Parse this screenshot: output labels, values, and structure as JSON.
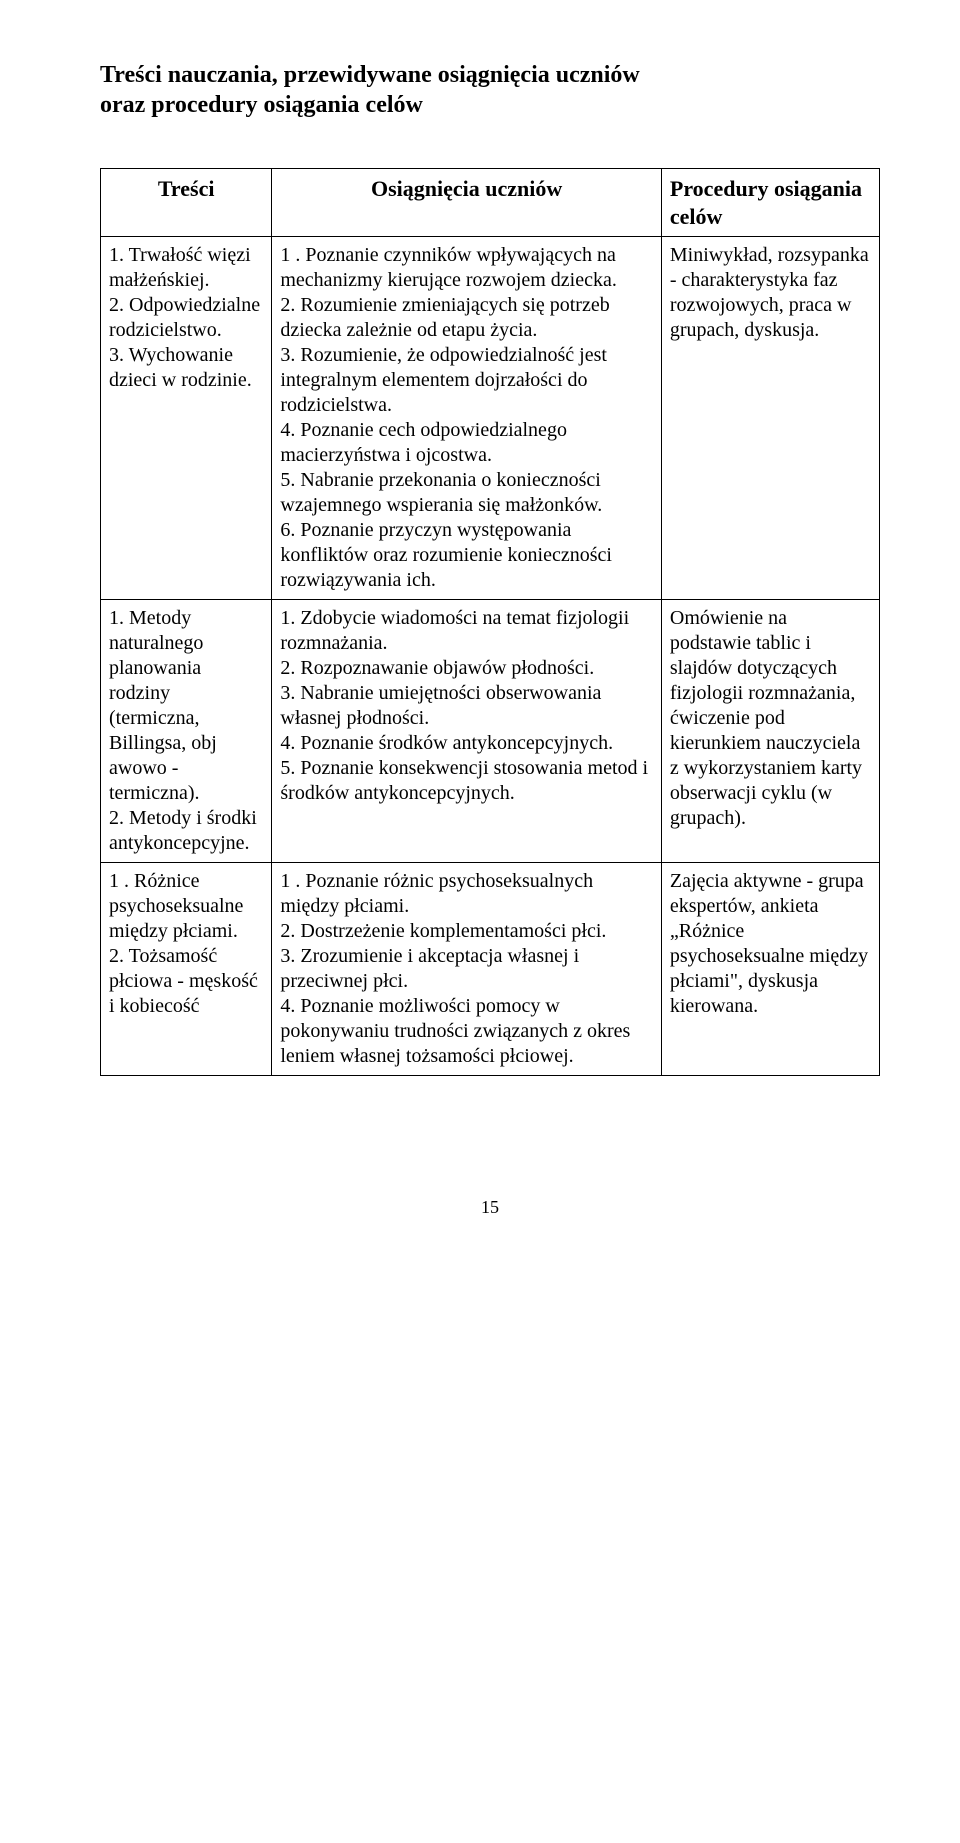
{
  "title_line1": "Treści nauczania, przewidywane osiągnięcia uczniów",
  "title_line2": "oraz procedury osiągania celów",
  "headers": {
    "col1": "Treści",
    "col2": "Osiągnięcia uczniów",
    "col3": "Procedury osiągania celów"
  },
  "rows": [
    {
      "c1": "1. Trwałość więzi małżeńskiej.\n2. Odpowiedzialne rodzicielstwo.\n3. Wychowanie dzieci w rodzinie.",
      "c2": "1 . Poznanie czynników wpływających na mechanizmy kierujące rozwojem dziecka.\n2. Rozumienie zmieniających się potrzeb dziecka zależnie od etapu życia.\n3. Rozumienie, że odpowiedzialność jest integralnym elementem dojrzałości do rodzicielstwa.\n4. Poznanie cech odpowiedzialnego macierzyństwa i ojcostwa.\n5. Nabranie przekonania o konieczności wzajemnego wspierania się małżonków.\n6. Poznanie przyczyn występowania konfliktów oraz rozumienie konieczności rozwiązywania ich.",
      "c3": "Miniwykład, rozsypanka - charakterystyka faz rozwojowych, praca w grupach, dyskusja."
    },
    {
      "c1": "1. Metody naturalnego planowania rodziny (termiczna, Billingsa, obj awowo -termiczna).\n2. Metody i środki antykoncepcyjne.",
      "c2": "1. Zdobycie wiadomości na temat fizjologii rozmnażania.\n2. Rozpoznawanie objawów płodności.\n3. Nabranie umiejętności obserwowania własnej płodności.\n4. Poznanie środków antykoncepcyjnych.\n5. Poznanie konsekwencji stosowania metod i środków antykoncepcyjnych.",
      "c3": "Omówienie na podstawie tablic i slajdów dotyczących fizjologii rozmnażania, ćwiczenie pod kierunkiem nauczyciela z wykorzystaniem karty obserwacji cyklu (w grupach)."
    },
    {
      "c1": "1 . Różnice psychoseksualne między płciami.\n2. Tożsamość płciowa - męskość i kobiecość",
      "c2": "1 . Poznanie różnic psychoseksualnych między płciami.\n2. Dostrzeżenie komplementamości płci.\n3. Zrozumienie i akceptacja własnej i przeciwnej płci.\n4. Poznanie możliwości pomocy w pokonywaniu trudności związanych z okres leniem własnej tożsamości płciowej.",
      "c3": "Zajęcia aktywne - grupa ekspertów, ankieta „Różnice psychoseksualne między płciami\", dyskusja kierowana."
    }
  ],
  "page_number": "15"
}
